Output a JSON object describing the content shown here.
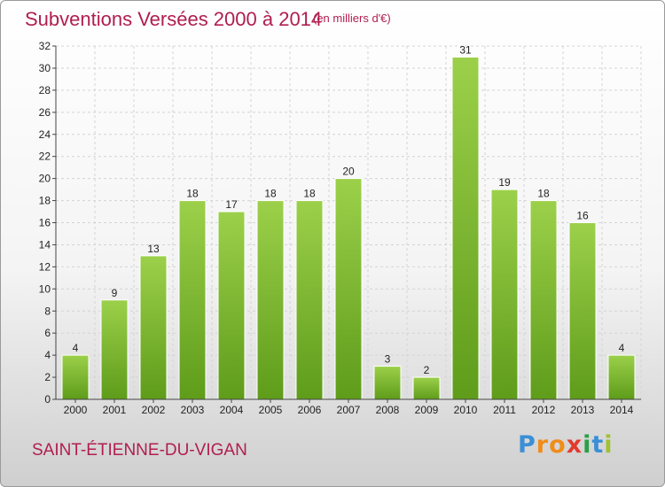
{
  "chart_data": {
    "type": "bar",
    "title": "Subventions Versées 2000 à 2014",
    "unit_note": "(en milliers d'€)",
    "categories": [
      "2000",
      "2001",
      "2002",
      "2003",
      "2004",
      "2005",
      "2006",
      "2007",
      "2008",
      "2009",
      "2010",
      "2011",
      "2012",
      "2013",
      "2014"
    ],
    "values": [
      4,
      9,
      13,
      18,
      17,
      18,
      18,
      20,
      3,
      2,
      31,
      19,
      18,
      16,
      4
    ],
    "ylim": [
      0,
      32
    ],
    "yticks": [
      0,
      2,
      4,
      6,
      8,
      10,
      12,
      14,
      16,
      18,
      20,
      22,
      24,
      26,
      28,
      30,
      32
    ],
    "grid": true,
    "bar_color": "#7fba2e",
    "data_labels": true
  },
  "commune": "SAINT-ÉTIENNE-DU-VIGAN",
  "brand": {
    "letters": [
      "P",
      "r",
      "o",
      "x",
      "i",
      "t",
      "i"
    ],
    "colors": [
      "#3b8fd6",
      "#f08c1a",
      "#f08c1a",
      "#e23a2e",
      "#2a9f4a",
      "#3b8fd6",
      "#a0c230"
    ]
  }
}
